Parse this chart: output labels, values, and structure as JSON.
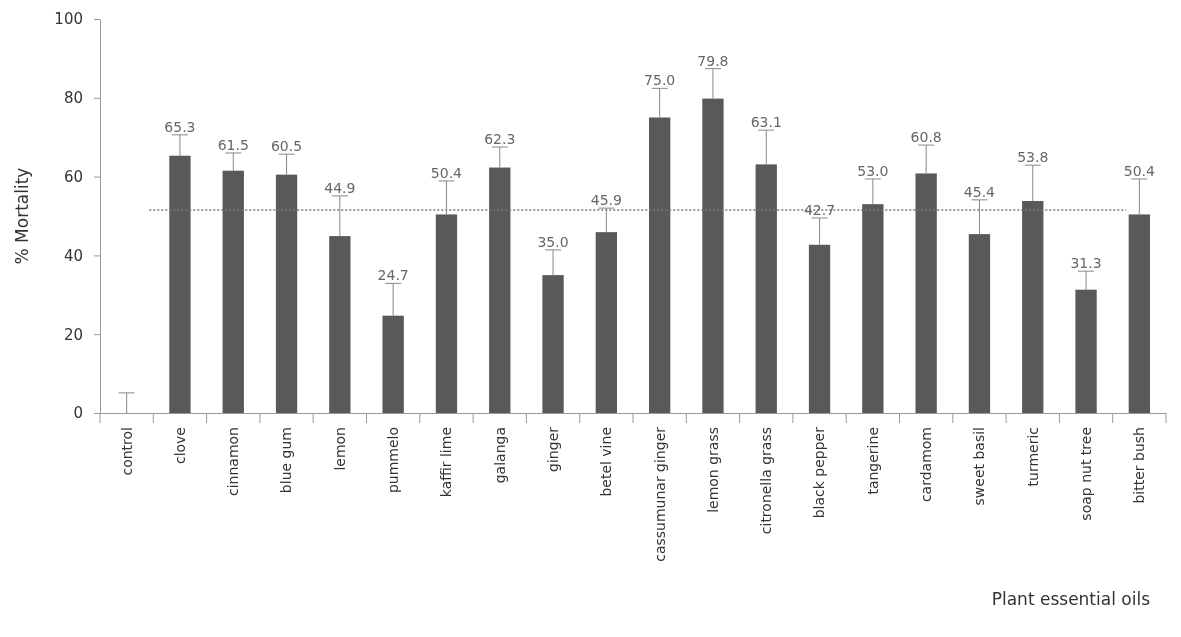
{
  "chart_data": {
    "type": "bar",
    "xlabel": "Plant essential oils",
    "ylabel": "% Mortality",
    "categories": [
      "control",
      "clove",
      "cinnamon",
      "blue gum",
      "lemon",
      "pummelo",
      "kaffir lime",
      "galanga",
      "ginger",
      "betel vine",
      "cassumunar ginger",
      "lemon grass",
      "citronella grass",
      "black pepper",
      "tangerine",
      "cardamom",
      "sweet basil",
      "turmeric",
      "soap nut tree",
      "bitter bush"
    ],
    "values": [
      0,
      65.3,
      61.5,
      60.5,
      44.9,
      24.7,
      50.4,
      62.3,
      35.0,
      45.9,
      75.0,
      79.8,
      63.1,
      42.7,
      53.0,
      60.8,
      45.4,
      53.8,
      31.3,
      50.4
    ],
    "value_labels": [
      null,
      "65.3",
      "61.5",
      "60.5",
      "44.9",
      "24.7",
      "50.4",
      "62.3",
      "35.0",
      "45.9",
      "75.0",
      "79.8",
      "63.1",
      "42.7",
      "53.0",
      "60.8",
      "45.4",
      "53.8",
      "31.3",
      "50.4"
    ],
    "errors": [
      [
        0,
        5.1
      ],
      [
        65.3,
        70.6
      ],
      [
        61.5,
        66.0
      ],
      [
        60.5,
        65.7
      ],
      [
        44.9,
        55.1
      ],
      [
        24.7,
        32.9
      ],
      [
        50.4,
        58.9
      ],
      [
        62.3,
        67.5
      ],
      [
        35.0,
        41.4
      ],
      [
        45.9,
        52.0
      ],
      [
        75.0,
        82.4
      ],
      [
        79.8,
        87.4
      ],
      [
        63.1,
        71.8
      ],
      [
        42.7,
        49.5
      ],
      [
        53.0,
        59.4
      ],
      [
        60.8,
        68.0
      ],
      [
        45.4,
        54.1
      ],
      [
        53.8,
        62.9
      ],
      [
        31.3,
        36.0
      ],
      [
        50.4,
        59.4
      ]
    ],
    "color": "#595959",
    "ylim": [
      0,
      100
    ],
    "yticks": [
      0,
      20,
      40,
      60,
      80,
      100
    ],
    "ref_lines": [
      {
        "axis": "y",
        "value": 51.5,
        "color": "#777777",
        "line_style": "dotted"
      }
    ]
  }
}
